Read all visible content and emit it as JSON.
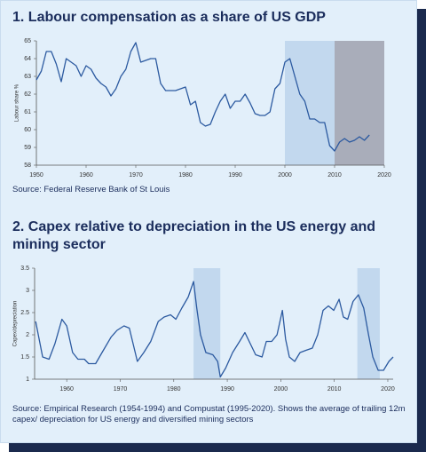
{
  "chart_data": [
    {
      "type": "line",
      "title": "1. Labour compensation as a share of US GDP",
      "source": "Source: Federal Reserve Bank of St Louis",
      "y_label": "Labour share %",
      "x": [
        1950,
        1951,
        1952,
        1953,
        1954,
        1955,
        1956,
        1957,
        1958,
        1959,
        1960,
        1961,
        1962,
        1963,
        1964,
        1965,
        1966,
        1967,
        1968,
        1969,
        1970,
        1971,
        1972,
        1973,
        1974,
        1975,
        1976,
        1977,
        1978,
        1979,
        1980,
        1981,
        1982,
        1983,
        1984,
        1985,
        1986,
        1987,
        1988,
        1989,
        1990,
        1991,
        1992,
        1993,
        1994,
        1995,
        1996,
        1997,
        1998,
        1999,
        2000,
        2001,
        2002,
        2003,
        2004,
        2005,
        2006,
        2007,
        2008,
        2009,
        2010,
        2011,
        2012,
        2013,
        2014,
        2015,
        2016,
        2017
      ],
      "series": [
        {
          "color": "#2c5aa0",
          "values": [
            62.8,
            63.3,
            64.4,
            64.4,
            63.7,
            62.7,
            64.0,
            63.8,
            63.6,
            63.0,
            63.6,
            63.4,
            62.9,
            62.6,
            62.4,
            61.9,
            62.3,
            63.0,
            63.4,
            64.4,
            64.9,
            63.8,
            63.9,
            64.0,
            64.0,
            62.6,
            62.2,
            62.2,
            62.2,
            62.3,
            62.4,
            61.4,
            61.6,
            60.4,
            60.2,
            60.3,
            61.0,
            61.6,
            62.0,
            61.2,
            61.6,
            61.6,
            62.0,
            61.5,
            60.9,
            60.8,
            60.8,
            61.0,
            62.3,
            62.6,
            63.8,
            64.0,
            63.0,
            62.0,
            61.6,
            60.6,
            60.6,
            60.4,
            60.4,
            59.1,
            58.8,
            59.3,
            59.5,
            59.3,
            59.4,
            59.6,
            59.4,
            59.7
          ]
        }
      ],
      "xlim": [
        1950,
        2020
      ],
      "xticks": [
        1950,
        1960,
        1970,
        1980,
        1990,
        2000,
        2010,
        2020
      ],
      "ylim": [
        58,
        65
      ],
      "yticks": [
        58,
        59,
        60,
        61,
        62,
        63,
        64,
        65
      ],
      "shaded_regions": [
        {
          "from": 2000,
          "to": 2010,
          "color": "#c2d8ee"
        },
        {
          "from": 2010,
          "to": 2020,
          "color": "#a9adba"
        }
      ]
    },
    {
      "type": "line",
      "title": "2. Capex relative to depreciation in the US energy and mining sector",
      "source": "Source: Empirical Research (1954-1994) and Compustat (1995-2020). Shows the average of trailing 12m capex/ depreciation for US energy and diversified mining sectors",
      "y_label": "Capex/depreciation",
      "x": [
        1954.2,
        1955.5,
        1956.7,
        1957.8,
        1959.1,
        1960.0,
        1961.1,
        1962.1,
        1963.3,
        1964.1,
        1965.4,
        1966.6,
        1968.3,
        1969.4,
        1970.7,
        1971.7,
        1972.4,
        1973.2,
        1974.4,
        1975.7,
        1977.1,
        1978.2,
        1979.4,
        1980.4,
        1981.5,
        1982.7,
        1983.7,
        1984.3,
        1985.0,
        1986.0,
        1987.3,
        1988.2,
        1988.7,
        1989.7,
        1991.0,
        1992.3,
        1993.3,
        1994.3,
        1995.3,
        1996.5,
        1997.3,
        1998.3,
        1999.3,
        2000.3,
        2000.9,
        2001.6,
        2002.6,
        2003.6,
        2004.7,
        2005.9,
        2006.9,
        2007.9,
        2008.9,
        2009.9,
        2010.9,
        2011.7,
        2012.5,
        2013.5,
        2014.5,
        2015.5,
        2016.4,
        2017.2,
        2018.2,
        2019.2,
        2020.2,
        2021.0
      ],
      "series": [
        {
          "color": "#2c5aa0",
          "values": [
            2.3,
            1.5,
            1.45,
            1.8,
            2.35,
            2.2,
            1.6,
            1.45,
            1.45,
            1.35,
            1.35,
            1.6,
            1.95,
            2.1,
            2.2,
            2.15,
            1.8,
            1.4,
            1.6,
            1.85,
            2.3,
            2.4,
            2.45,
            2.35,
            2.6,
            2.85,
            3.2,
            2.6,
            2.0,
            1.6,
            1.55,
            1.4,
            1.05,
            1.25,
            1.6,
            1.85,
            2.05,
            1.8,
            1.55,
            1.5,
            1.85,
            1.85,
            2.0,
            2.55,
            1.9,
            1.5,
            1.4,
            1.6,
            1.65,
            1.7,
            2.0,
            2.55,
            2.65,
            2.55,
            2.8,
            2.4,
            2.35,
            2.75,
            2.9,
            2.6,
            2.0,
            1.5,
            1.2,
            1.2,
            1.4,
            1.5
          ]
        }
      ],
      "xlim": [
        1954,
        2021
      ],
      "xticks": [
        1960,
        1970,
        1980,
        1990,
        2000,
        2010,
        2020
      ],
      "ylim": [
        1,
        3.5
      ],
      "yticks": [
        1,
        1.5,
        2,
        2.5,
        3,
        3.5
      ],
      "shaded_regions": [
        {
          "from": 1983.7,
          "to": 1988.7,
          "color": "#c2d8ee"
        },
        {
          "from": 2014.3,
          "to": 2018.5,
          "color": "#c2d8ee"
        }
      ]
    }
  ]
}
